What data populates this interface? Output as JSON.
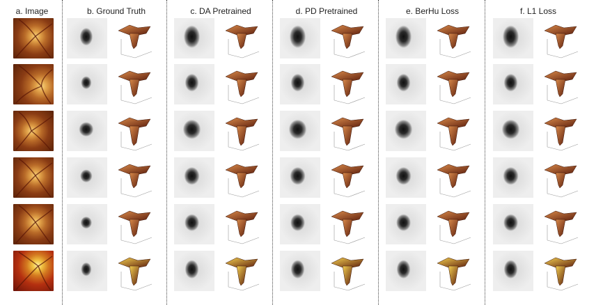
{
  "figure": {
    "columns": [
      {
        "key": "image",
        "title": "a. Image"
      },
      {
        "key": "gt",
        "title": "b. Ground Truth"
      },
      {
        "key": "da",
        "title": "c. DA Pretrained"
      },
      {
        "key": "pd",
        "title": "d. PD Pretrained"
      },
      {
        "key": "berhu",
        "title": "e. BerHu Loss"
      },
      {
        "key": "l1",
        "title": "f. L1 Loss"
      }
    ],
    "row_count": 6,
    "colors": {
      "fundus_bright": "#e0a048",
      "fundus_dark": "#5a2208",
      "surface_light": "#d98a4a",
      "surface_dark": "#5e200e",
      "depth_bg": "#eeeeee",
      "depth_blob": "#101010"
    },
    "icons": {
      "fundus": "retinal-fundus-photo",
      "depth_map": "grayscale-depth-map",
      "surface": "3d-surface-plot"
    }
  }
}
